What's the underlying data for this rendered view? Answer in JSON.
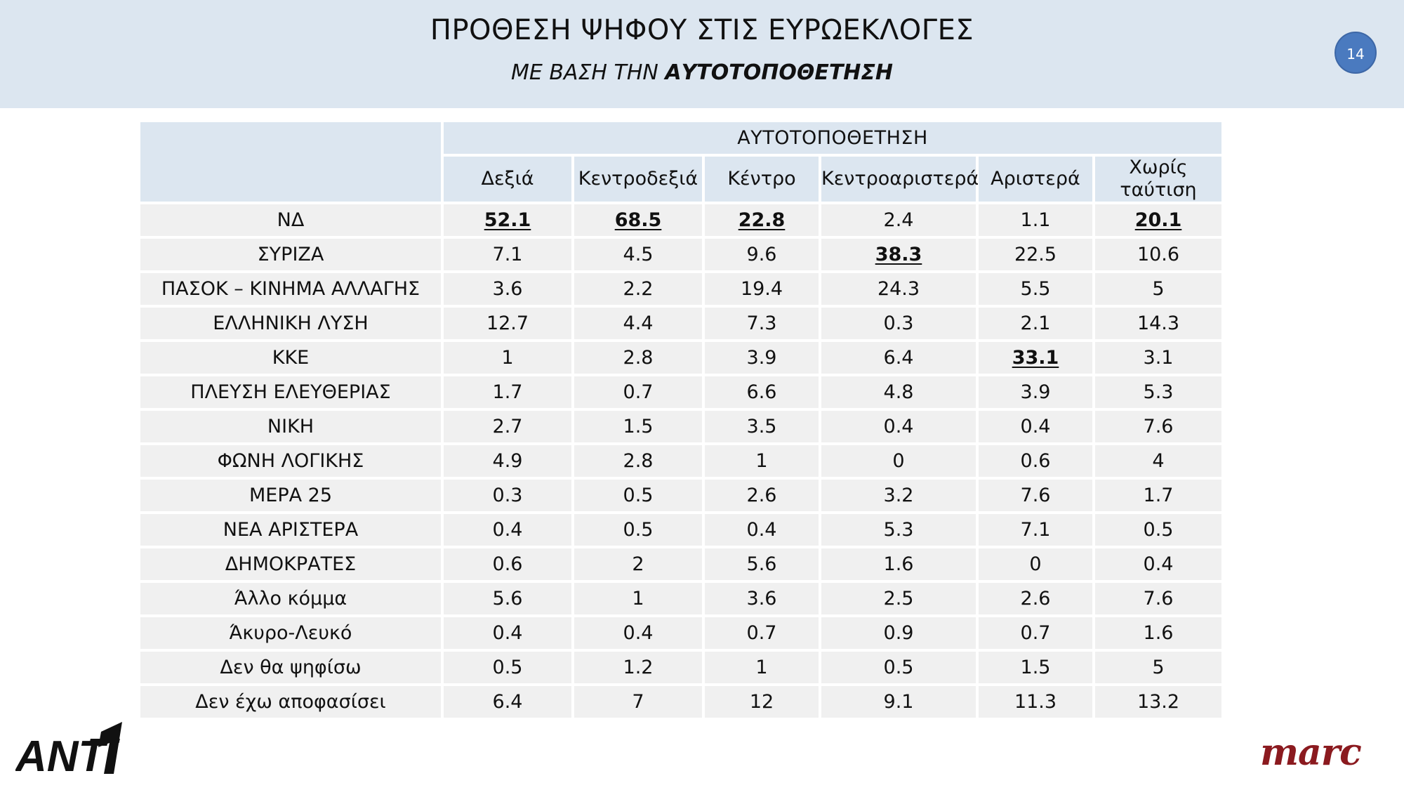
{
  "header": {
    "title": "ΠΡΟΘΕΣΗ ΨΗΦΟΥ ΣΤΙΣ ΕΥΡΩΕΚΛΟΓΕΣ",
    "subtitle_prefix": "ΜΕ ΒΑΣΗ ΤΗΝ ",
    "subtitle_bold": "ΑΥΤΟΤΟΠΟΘΕΤΗΣΗ",
    "page_number": "14"
  },
  "table": {
    "group_header": "ΑΥΤΟΤΟΠΟΘΕΤΗΣΗ",
    "columns": [
      "Δεξιά",
      "Κεντροδεξιά",
      "Κέντρο",
      "Κεντροαριστερά",
      "Αριστερά",
      "Χωρίς ταύτιση"
    ],
    "rows": [
      {
        "label": "ΝΔ",
        "values": [
          "52.1",
          "68.5",
          "22.8",
          "2.4",
          "1.1",
          "20.1"
        ],
        "styles": [
          "u",
          "u",
          "u",
          "",
          "",
          "u"
        ]
      },
      {
        "label": "ΣΥΡΙΖΑ",
        "values": [
          "7.1",
          "4.5",
          "9.6",
          "38.3",
          "22.5",
          "10.6"
        ],
        "styles": [
          "",
          "",
          "",
          "u",
          "b",
          ""
        ]
      },
      {
        "label": "ΠΑΣΟΚ – ΚΙΝΗΜΑ ΑΛΛΑΓΗΣ",
        "values": [
          "3.6",
          "2.2",
          "19.4",
          "24.3",
          "5.5",
          "5"
        ],
        "styles": [
          "",
          "",
          "b",
          "b",
          "",
          ""
        ]
      },
      {
        "label": "ΕΛΛΗΝΙΚΗ ΛΥΣΗ",
        "values": [
          "12.7",
          "4.4",
          "7.3",
          "0.3",
          "2.1",
          "14.3"
        ],
        "styles": [
          "b",
          "",
          "",
          "",
          "",
          "b"
        ]
      },
      {
        "label": "ΚΚΕ",
        "values": [
          "1",
          "2.8",
          "3.9",
          "6.4",
          "33.1",
          "3.1"
        ],
        "styles": [
          "",
          "",
          "",
          "",
          "u",
          ""
        ]
      },
      {
        "label": "ΠΛΕΥΣΗ ΕΛΕΥΘΕΡΙΑΣ",
        "values": [
          "1.7",
          "0.7",
          "6.6",
          "4.8",
          "3.9",
          "5.3"
        ],
        "styles": [
          "",
          "",
          "",
          "",
          "",
          ""
        ]
      },
      {
        "label": "ΝΙΚΗ",
        "values": [
          "2.7",
          "1.5",
          "3.5",
          "0.4",
          "0.4",
          "7.6"
        ],
        "styles": [
          "",
          "",
          "",
          "",
          "",
          ""
        ]
      },
      {
        "label": "ΦΩΝΗ ΛΟΓΙΚΗΣ",
        "values": [
          "4.9",
          "2.8",
          "1",
          "0",
          "0.6",
          "4"
        ],
        "styles": [
          "",
          "",
          "",
          "",
          "",
          ""
        ]
      },
      {
        "label": "ΜΕΡΑ 25",
        "values": [
          "0.3",
          "0.5",
          "2.6",
          "3.2",
          "7.6",
          "1.7"
        ],
        "styles": [
          "",
          "",
          "",
          "",
          "",
          ""
        ]
      },
      {
        "label": "ΝΕΑ ΑΡΙΣΤΕΡΑ",
        "values": [
          "0.4",
          "0.5",
          "0.4",
          "5.3",
          "7.1",
          "0.5"
        ],
        "styles": [
          "",
          "",
          "",
          "",
          "",
          ""
        ]
      },
      {
        "label": "ΔΗΜΟΚΡΑΤΕΣ",
        "values": [
          "0.6",
          "2",
          "5.6",
          "1.6",
          "0",
          "0.4"
        ],
        "styles": [
          "",
          "",
          "",
          "",
          "",
          ""
        ]
      },
      {
        "label": "Άλλο κόμμα",
        "values": [
          "5.6",
          "1",
          "3.6",
          "2.5",
          "2.6",
          "7.6"
        ],
        "styles": [
          "",
          "",
          "",
          "",
          "",
          ""
        ]
      },
      {
        "label": "Άκυρο-Λευκό",
        "values": [
          "0.4",
          "0.4",
          "0.7",
          "0.9",
          "0.7",
          "1.6"
        ],
        "styles": [
          "",
          "",
          "",
          "",
          "",
          ""
        ]
      },
      {
        "label": "Δεν θα ψηφίσω",
        "values": [
          "0.5",
          "1.2",
          "1",
          "0.5",
          "1.5",
          "5"
        ],
        "styles": [
          "",
          "",
          "",
          "",
          "",
          ""
        ]
      },
      {
        "label": "Δεν έχω αποφασίσει",
        "values": [
          "6.4",
          "7",
          "12",
          "9.1",
          "11.3",
          "13.2"
        ],
        "styles": [
          "",
          "",
          "",
          "",
          "",
          "b"
        ]
      }
    ]
  },
  "logos": {
    "left": "ANT1",
    "right": "marc"
  },
  "colors": {
    "header_bg": "#dce6f0",
    "badge": "#4a7abf",
    "cell_bg": "#f0f0f0",
    "marc_red": "#8b1a1f"
  }
}
